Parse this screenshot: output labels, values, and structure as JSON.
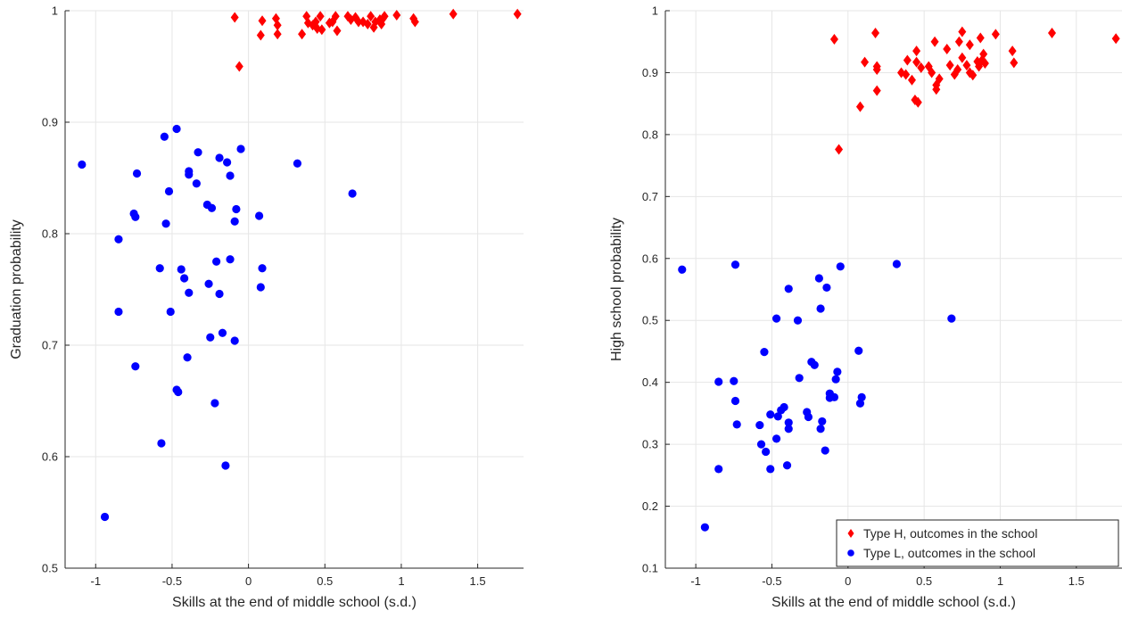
{
  "chart_data": [
    {
      "type": "scatter",
      "xlabel": "Skills at the end of middle school (s.d.)",
      "ylabel": "Graduation probability",
      "xlim": [
        -1.2,
        1.8
      ],
      "ylim": [
        0.5,
        1.0
      ],
      "xticks": [
        -1,
        -0.5,
        0,
        0.5,
        1,
        1.5
      ],
      "yticks": [
        0.5,
        0.6,
        0.7,
        0.8,
        0.9,
        1
      ],
      "xtick_labels": [
        "-1",
        "-0.5",
        "0",
        "0.5",
        "1",
        "1.5"
      ],
      "ytick_labels": [
        "0.5",
        "0.6",
        "0.7",
        "0.8",
        "0.9",
        "1"
      ],
      "grid": true,
      "legend": null,
      "series": [
        {
          "name": "Type H, outcomes in the school",
          "marker": "diamond",
          "color": "#ff0000",
          "points": [
            [
              -0.09,
              0.994
            ],
            [
              -0.06,
              0.95
            ],
            [
              0.08,
              0.978
            ],
            [
              0.09,
              0.991
            ],
            [
              0.18,
              0.993
            ],
            [
              0.19,
              0.987
            ],
            [
              0.19,
              0.979
            ],
            [
              0.35,
              0.979
            ],
            [
              0.38,
              0.995
            ],
            [
              0.39,
              0.989
            ],
            [
              0.42,
              0.987
            ],
            [
              0.44,
              0.99
            ],
            [
              0.45,
              0.984
            ],
            [
              0.47,
              0.995
            ],
            [
              0.48,
              0.983
            ],
            [
              0.53,
              0.989
            ],
            [
              0.55,
              0.99
            ],
            [
              0.57,
              0.995
            ],
            [
              0.58,
              0.982
            ],
            [
              0.65,
              0.995
            ],
            [
              0.67,
              0.992
            ],
            [
              0.7,
              0.994
            ],
            [
              0.72,
              0.99
            ],
            [
              0.75,
              0.99
            ],
            [
              0.78,
              0.988
            ],
            [
              0.8,
              0.995
            ],
            [
              0.82,
              0.985
            ],
            [
              0.83,
              0.99
            ],
            [
              0.86,
              0.992
            ],
            [
              0.87,
              0.988
            ],
            [
              0.88,
              0.993
            ],
            [
              0.89,
              0.995
            ],
            [
              0.97,
              0.996
            ],
            [
              1.08,
              0.993
            ],
            [
              1.09,
              0.99
            ],
            [
              1.34,
              0.997
            ],
            [
              1.76,
              0.997
            ]
          ]
        },
        {
          "name": "Type L, outcomes in the school",
          "marker": "circle",
          "color": "#0000ff",
          "points": [
            [
              -1.09,
              0.862
            ],
            [
              -0.94,
              0.546
            ],
            [
              -0.85,
              0.795
            ],
            [
              -0.85,
              0.73
            ],
            [
              -0.75,
              0.818
            ],
            [
              -0.74,
              0.815
            ],
            [
              -0.74,
              0.681
            ],
            [
              -0.73,
              0.854
            ],
            [
              -0.58,
              0.769
            ],
            [
              -0.57,
              0.612
            ],
            [
              -0.55,
              0.887
            ],
            [
              -0.54,
              0.809
            ],
            [
              -0.52,
              0.838
            ],
            [
              -0.51,
              0.73
            ],
            [
              -0.47,
              0.894
            ],
            [
              -0.47,
              0.66
            ],
            [
              -0.46,
              0.658
            ],
            [
              -0.44,
              0.768
            ],
            [
              -0.42,
              0.76
            ],
            [
              -0.4,
              0.689
            ],
            [
              -0.39,
              0.853
            ],
            [
              -0.39,
              0.856
            ],
            [
              -0.39,
              0.747
            ],
            [
              -0.34,
              0.845
            ],
            [
              -0.33,
              0.873
            ],
            [
              -0.27,
              0.826
            ],
            [
              -0.26,
              0.755
            ],
            [
              -0.25,
              0.707
            ],
            [
              -0.24,
              0.823
            ],
            [
              -0.22,
              0.648
            ],
            [
              -0.21,
              0.775
            ],
            [
              -0.19,
              0.868
            ],
            [
              -0.19,
              0.746
            ],
            [
              -0.17,
              0.711
            ],
            [
              -0.15,
              0.592
            ],
            [
              -0.14,
              0.864
            ],
            [
              -0.12,
              0.852
            ],
            [
              -0.12,
              0.777
            ],
            [
              -0.09,
              0.811
            ],
            [
              -0.08,
              0.822
            ],
            [
              -0.09,
              0.704
            ],
            [
              -0.05,
              0.876
            ],
            [
              0.07,
              0.816
            ],
            [
              0.08,
              0.752
            ],
            [
              0.09,
              0.769
            ],
            [
              0.32,
              0.863
            ],
            [
              0.68,
              0.836
            ]
          ]
        }
      ]
    },
    {
      "type": "scatter",
      "xlabel": "Skills at the end of middle school (s.d.)",
      "ylabel": "High school probability",
      "xlim": [
        -1.2,
        1.8
      ],
      "ylim": [
        0.1,
        1.0
      ],
      "xticks": [
        -1,
        -0.5,
        0,
        0.5,
        1,
        1.5
      ],
      "yticks": [
        0.1,
        0.2,
        0.3,
        0.4,
        0.5,
        0.6,
        0.7,
        0.8,
        0.9,
        1
      ],
      "xtick_labels": [
        "-1",
        "-0.5",
        "0",
        "0.5",
        "1",
        "1.5"
      ],
      "ytick_labels": [
        "0.1",
        "0.2",
        "0.3",
        "0.4",
        "0.5",
        "0.6",
        "0.7",
        "0.8",
        "0.9",
        "1"
      ],
      "grid": true,
      "legend": "bottom-right",
      "series": [
        {
          "name": "Type H, outcomes in the school",
          "marker": "diamond",
          "color": "#ff0000",
          "points": [
            [
              -0.09,
              0.954
            ],
            [
              -0.06,
              0.776
            ],
            [
              0.08,
              0.845
            ],
            [
              0.11,
              0.917
            ],
            [
              0.18,
              0.964
            ],
            [
              0.19,
              0.91
            ],
            [
              0.19,
              0.905
            ],
            [
              0.19,
              0.871
            ],
            [
              0.35,
              0.9
            ],
            [
              0.38,
              0.897
            ],
            [
              0.39,
              0.92
            ],
            [
              0.42,
              0.888
            ],
            [
              0.44,
              0.856
            ],
            [
              0.45,
              0.935
            ],
            [
              0.45,
              0.917
            ],
            [
              0.46,
              0.852
            ],
            [
              0.48,
              0.908
            ],
            [
              0.53,
              0.91
            ],
            [
              0.55,
              0.9
            ],
            [
              0.57,
              0.95
            ],
            [
              0.58,
              0.88
            ],
            [
              0.58,
              0.873
            ],
            [
              0.6,
              0.89
            ],
            [
              0.65,
              0.938
            ],
            [
              0.67,
              0.912
            ],
            [
              0.7,
              0.897
            ],
            [
              0.72,
              0.905
            ],
            [
              0.73,
              0.95
            ],
            [
              0.75,
              0.966
            ],
            [
              0.75,
              0.924
            ],
            [
              0.78,
              0.912
            ],
            [
              0.8,
              0.945
            ],
            [
              0.8,
              0.9
            ],
            [
              0.82,
              0.896
            ],
            [
              0.85,
              0.918
            ],
            [
              0.86,
              0.91
            ],
            [
              0.87,
              0.956
            ],
            [
              0.88,
              0.92
            ],
            [
              0.89,
              0.93
            ],
            [
              0.9,
              0.915
            ],
            [
              0.97,
              0.962
            ],
            [
              1.08,
              0.935
            ],
            [
              1.09,
              0.916
            ],
            [
              1.34,
              0.964
            ],
            [
              1.76,
              0.955
            ]
          ]
        },
        {
          "name": "Type L, outcomes in the school",
          "marker": "circle",
          "color": "#0000ff",
          "points": [
            [
              -1.09,
              0.582
            ],
            [
              -0.94,
              0.166
            ],
            [
              -0.85,
              0.401
            ],
            [
              -0.85,
              0.26
            ],
            [
              -0.75,
              0.402
            ],
            [
              -0.74,
              0.59
            ],
            [
              -0.74,
              0.37
            ],
            [
              -0.73,
              0.332
            ],
            [
              -0.58,
              0.331
            ],
            [
              -0.57,
              0.3
            ],
            [
              -0.55,
              0.449
            ],
            [
              -0.54,
              0.288
            ],
            [
              -0.51,
              0.348
            ],
            [
              -0.51,
              0.26
            ],
            [
              -0.47,
              0.503
            ],
            [
              -0.47,
              0.309
            ],
            [
              -0.46,
              0.345
            ],
            [
              -0.44,
              0.355
            ],
            [
              -0.42,
              0.36
            ],
            [
              -0.4,
              0.266
            ],
            [
              -0.39,
              0.551
            ],
            [
              -0.39,
              0.335
            ],
            [
              -0.39,
              0.325
            ],
            [
              -0.33,
              0.5
            ],
            [
              -0.32,
              0.407
            ],
            [
              -0.27,
              0.352
            ],
            [
              -0.26,
              0.344
            ],
            [
              -0.24,
              0.433
            ],
            [
              -0.22,
              0.428
            ],
            [
              -0.19,
              0.568
            ],
            [
              -0.18,
              0.519
            ],
            [
              -0.18,
              0.325
            ],
            [
              -0.17,
              0.337
            ],
            [
              -0.15,
              0.29
            ],
            [
              -0.14,
              0.553
            ],
            [
              -0.12,
              0.382
            ],
            [
              -0.12,
              0.375
            ],
            [
              -0.09,
              0.376
            ],
            [
              -0.08,
              0.405
            ],
            [
              -0.07,
              0.417
            ],
            [
              -0.05,
              0.587
            ],
            [
              0.07,
              0.451
            ],
            [
              0.08,
              0.366
            ],
            [
              0.09,
              0.376
            ],
            [
              0.32,
              0.591
            ],
            [
              0.68,
              0.503
            ]
          ]
        }
      ]
    }
  ]
}
